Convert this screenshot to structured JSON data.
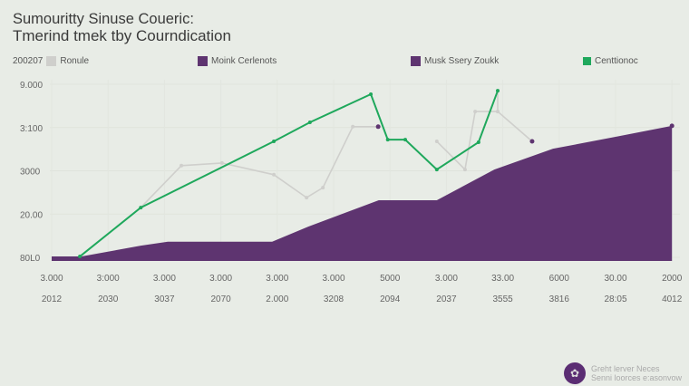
{
  "title": "Sumouritty Sinuse Coueric:",
  "subtitle": "Tmerind tmek tby Courndication",
  "legend_prefix": "200207",
  "credit": {
    "line1": "Greht lerver Neces",
    "line2": "Senni loorces e:asonvow"
  },
  "chart_data": {
    "type": "area",
    "title": "Sumouritty Sinuse Coueric: Tmerind tmek tby Courndication",
    "legend_placement": "top",
    "grid": true,
    "ylim": [
      0,
      4
    ],
    "xlim": [
      0,
      11
    ],
    "y_ticks": [
      "80L0",
      "20.00",
      "3000",
      "3:100",
      "9.000"
    ],
    "x_ticks_row1": [
      "3.000",
      "3:000",
      "3.000",
      "3.000",
      "3.000",
      "3.000",
      "5000",
      "3.000",
      "33.00",
      "6000",
      "30.00",
      "2000"
    ],
    "x_ticks_row2": [
      "2012",
      "2030",
      "3037",
      "2070",
      "2.000",
      "3208",
      "2094",
      "2037",
      "3555",
      "3816",
      "28:05",
      "4012"
    ],
    "series": [
      {
        "name": "Ronule",
        "kind": "line",
        "color": "#cfcfcc",
        "segments": [
          [
            [
              1.58,
              1.15
            ],
            [
              2.3,
              2.12
            ],
            [
              3.02,
              2.18
            ],
            [
              3.94,
              1.91
            ],
            [
              4.52,
              1.38
            ],
            [
              4.81,
              1.61
            ],
            [
              5.34,
              3.02
            ],
            [
              5.79,
              3.02
            ]
          ],
          [
            [
              6.83,
              2.68
            ],
            [
              7.33,
              2.03
            ],
            [
              7.51,
              3.37
            ],
            [
              7.91,
              3.37
            ],
            [
              7.91,
              3.85
            ]
          ],
          [
            [
              7.91,
              3.37
            ],
            [
              8.52,
              2.68
            ]
          ]
        ]
      },
      {
        "name": "Moink Cerlenots",
        "kind": "area",
        "color": "#5e3470",
        "points": [
          [
            0,
            0.02
          ],
          [
            0.53,
            0.02
          ],
          [
            1.58,
            0.27
          ],
          [
            2.06,
            0.36
          ],
          [
            3.91,
            0.36
          ],
          [
            4.55,
            0.71
          ],
          [
            5.8,
            1.32
          ],
          [
            6.83,
            1.32
          ],
          [
            7.85,
            2.03
          ],
          [
            8.89,
            2.51
          ],
          [
            10.02,
            2.79
          ],
          [
            11,
            3.04
          ]
        ]
      },
      {
        "name": "Musk Ssery Zoukk",
        "kind": "points",
        "color": "#5e3470",
        "points": [
          [
            5.79,
            3.02
          ],
          [
            8.52,
            2.68
          ]
        ]
      },
      {
        "name": "Centtionoc",
        "kind": "line",
        "color": "#1fa85c",
        "segments": [
          [
            [
              0.5,
              0.02
            ],
            [
              1.58,
              1.15
            ],
            [
              3.94,
              2.68
            ],
            [
              4.58,
              3.12
            ],
            [
              5.66,
              3.77
            ],
            [
              5.96,
              2.72
            ],
            [
              6.27,
              2.72
            ],
            [
              6.83,
              2.03
            ],
            [
              7.57,
              2.66
            ],
            [
              7.91,
              3.85
            ]
          ]
        ]
      }
    ]
  }
}
